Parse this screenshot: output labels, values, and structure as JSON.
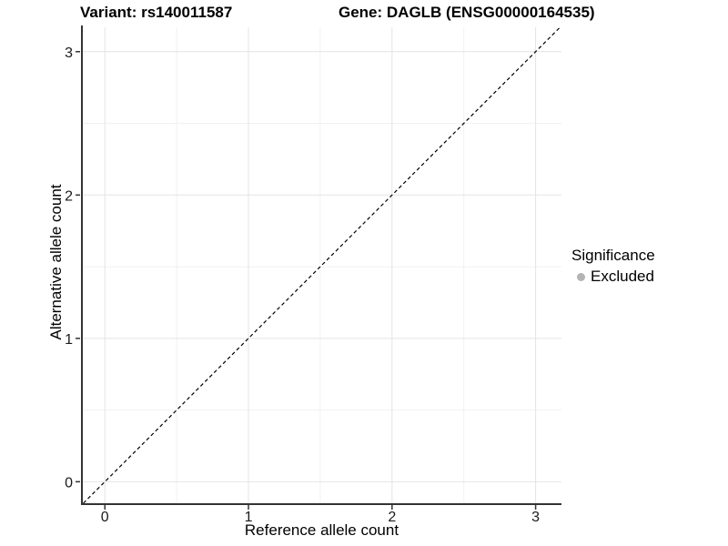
{
  "chart_data": {
    "type": "scatter",
    "title_left": "Variant: rs140011587",
    "title_right": "Gene: DAGLB (ENSG00000164535)",
    "xlabel": "Reference allele count",
    "ylabel": "Alternative allele count",
    "xlim": [
      -0.16,
      3.18
    ],
    "ylim": [
      -0.15,
      3.17
    ],
    "x_ticks": [
      0,
      1,
      2,
      3
    ],
    "y_ticks": [
      0,
      1,
      2,
      3
    ],
    "x_minor_ticks": [
      0.5,
      1.5,
      2.5
    ],
    "y_minor_ticks": [
      0.5,
      1.5,
      2.5
    ],
    "grid": "major and minor gridlines on white panel",
    "points": [],
    "reference_line": {
      "equation": "y = x",
      "style": "dashed",
      "color": "#000000"
    },
    "legend": {
      "title": "Significance",
      "position": "right",
      "items": [
        {
          "label": "Excluded",
          "color": "#b3b3b3"
        }
      ]
    },
    "colors": {
      "grid_major": "#e4e4e4",
      "grid_minor": "#f1f1f1",
      "axis_line": "#333333",
      "tick_mark": "#333333",
      "tick_text": "#1a1a1a",
      "background": "#ffffff"
    }
  }
}
